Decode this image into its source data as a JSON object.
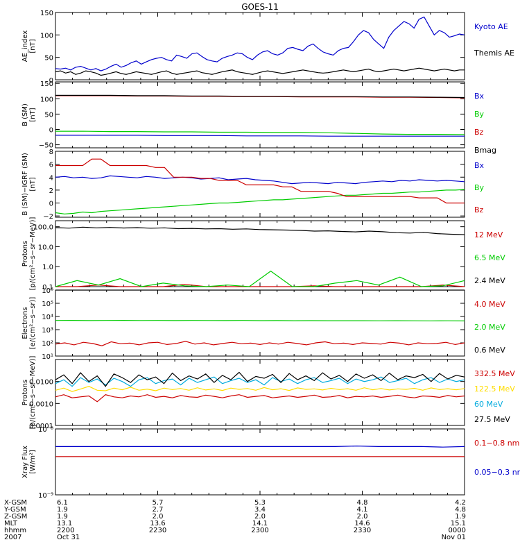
{
  "title": "GOES-11",
  "chart_data": [
    {
      "type": "line",
      "ylabel": "AE_index\n[nT]",
      "ylim": [
        0,
        150
      ],
      "yticks": [
        "0",
        "50",
        "100",
        "150"
      ],
      "yticks_values": [
        0,
        50,
        100,
        150
      ],
      "series": [
        {
          "name": "Kyoto AE",
          "color": "#0000cc",
          "values": [
            25,
            24,
            26,
            22,
            28,
            30,
            26,
            22,
            25,
            20,
            24,
            30,
            35,
            28,
            32,
            38,
            42,
            35,
            40,
            45,
            48,
            50,
            45,
            42,
            55,
            52,
            48,
            58,
            60,
            52,
            45,
            42,
            40,
            48,
            52,
            55,
            60,
            58,
            50,
            45,
            55,
            62,
            65,
            58,
            55,
            60,
            70,
            72,
            68,
            65,
            75,
            80,
            70,
            62,
            58,
            55,
            65,
            70,
            72,
            85,
            100,
            110,
            105,
            90,
            80,
            70,
            95,
            110,
            120,
            130,
            125,
            115,
            135,
            140,
            120,
            100,
            110,
            105,
            95,
            98,
            102,
            100
          ],
          "y_scale": "linear"
        },
        {
          "name": "Themis AE",
          "color": "#000000",
          "values": [
            18,
            20,
            15,
            18,
            12,
            15,
            20,
            18,
            15,
            10,
            12,
            15,
            18,
            14,
            12,
            15,
            18,
            16,
            14,
            12,
            15,
            18,
            20,
            15,
            12,
            14,
            16,
            18,
            20,
            16,
            14,
            12,
            15,
            18,
            20,
            22,
            18,
            16,
            14,
            12,
            15,
            18,
            20,
            18,
            16,
            14,
            16,
            18,
            20,
            22,
            20,
            18,
            16,
            15,
            16,
            18,
            20,
            22,
            20,
            18,
            20,
            22,
            24,
            20,
            18,
            20,
            22,
            24,
            22,
            20,
            22,
            24,
            26,
            24,
            22,
            20,
            22,
            24,
            22,
            20,
            22,
            22
          ],
          "y_scale": "linear"
        }
      ]
    },
    {
      "type": "line",
      "ylabel": "B (SM)\n[nT]",
      "ylim": [
        -60,
        155
      ],
      "yticks": [
        "−50",
        "0",
        "50",
        "100",
        "150"
      ],
      "yticks_values": [
        -50,
        0,
        50,
        100,
        150
      ],
      "series": [
        {
          "name": "Bx",
          "color": "#0000cc",
          "values": [
            -19,
            -19,
            -19,
            -19,
            -20,
            -20,
            -20,
            -21,
            -21,
            -21,
            -22,
            -22,
            -22,
            -22,
            -22,
            -22
          ]
        },
        {
          "name": "By",
          "color": "#00cc00",
          "values": [
            -6,
            -6,
            -7,
            -7,
            -8,
            -8,
            -9,
            -9,
            -10,
            -10,
            -11,
            -13,
            -15,
            -16,
            -16,
            -17
          ]
        },
        {
          "name": "Bz",
          "color": "#cc0000",
          "values": [
            110,
            110,
            110,
            109,
            109,
            108,
            108,
            107,
            107,
            106,
            106,
            106,
            105,
            105,
            104,
            103
          ]
        },
        {
          "name": "Bmag",
          "color": "#000000",
          "values": [
            111,
            111,
            111,
            110,
            110,
            109,
            109,
            108,
            108,
            107,
            107,
            107,
            106,
            106,
            105,
            104
          ]
        }
      ]
    },
    {
      "type": "line",
      "ylabel": "B (SM)−IGRF (SM)\n[nT]",
      "ylim": [
        -2.2,
        8
      ],
      "yticks": [
        "−2",
        "0",
        "2",
        "4",
        "6",
        "8"
      ],
      "yticks_values": [
        -2,
        0,
        2,
        4,
        6,
        8
      ],
      "series": [
        {
          "name": "Bx",
          "color": "#0000cc",
          "values": [
            4,
            4.1,
            3.9,
            4,
            3.8,
            3.9,
            4.2,
            4.1,
            4,
            3.9,
            4.1,
            4,
            3.8,
            3.9,
            4,
            3.9,
            3.7,
            3.8,
            3.9,
            3.6,
            3.7,
            3.8,
            3.6,
            3.5,
            3.4,
            3.2,
            3,
            3.1,
            3.2,
            3.1,
            3,
            3.2,
            3.1,
            3,
            3.2,
            3.3,
            3.4,
            3.3,
            3.5,
            3.4,
            3.6,
            3.5,
            3.4,
            3.5,
            3.4,
            3.3
          ]
        },
        {
          "name": "By",
          "color": "#00cc00",
          "values": [
            -1.5,
            -1.7,
            -1.6,
            -1.4,
            -1.5,
            -1.3,
            -1.2,
            -1.1,
            -1,
            -0.9,
            -0.8,
            -0.7,
            -0.6,
            -0.5,
            -0.4,
            -0.3,
            -0.2,
            -0.1,
            0,
            0,
            0.1,
            0.2,
            0.3,
            0.4,
            0.5,
            0.5,
            0.6,
            0.7,
            0.8,
            0.9,
            1,
            1.1,
            1.2,
            1.2,
            1.3,
            1.4,
            1.5,
            1.5,
            1.6,
            1.7,
            1.7,
            1.8,
            1.9,
            2,
            2,
            2.1
          ]
        },
        {
          "name": "Bz",
          "color": "#cc0000",
          "values": [
            5.8,
            5.8,
            5.8,
            5.8,
            6.8,
            6.8,
            5.8,
            5.8,
            5.8,
            5.8,
            5.8,
            5.5,
            5.5,
            4,
            4,
            4,
            3.8,
            3.8,
            3.5,
            3.5,
            3.5,
            2.8,
            2.8,
            2.8,
            2.8,
            2.5,
            2.5,
            1.8,
            1.8,
            1.8,
            1.8,
            1.5,
            1,
            1,
            1,
            1,
            1,
            1,
            1,
            1,
            0.8,
            0.8,
            0.8,
            0,
            0,
            0
          ]
        }
      ]
    },
    {
      "type": "line",
      "ylabel": "Protons\n[p/(cm²−s−sr−MeV)]",
      "y_scale": "log",
      "ylim": [
        0.1,
        200
      ],
      "yticks": [
        "0.1",
        "1.0",
        "10.0",
        "100.0"
      ],
      "yticks_values": [
        0.1,
        1,
        10,
        100
      ],
      "series": [
        {
          "name": "12 MeV",
          "color": "#cc0000",
          "values": [
            0.1,
            0.1,
            0.12,
            0.1,
            0.1,
            0.1,
            0.13,
            0.1,
            0.1,
            0.1,
            0.1,
            0.1,
            0.11,
            0.1,
            0.1,
            0.1,
            0.1,
            0.1,
            0.12,
            0.1
          ]
        },
        {
          "name": "6.5 MeV",
          "color": "#00cc00",
          "values": [
            0.1,
            0.2,
            0.12,
            0.25,
            0.1,
            0.15,
            0.11,
            0.1,
            0.12,
            0.1,
            0.6,
            0.1,
            0.1,
            0.15,
            0.2,
            0.12,
            0.3,
            0.1,
            0.11,
            0.2
          ]
        },
        {
          "name": "2.4 MeV",
          "color": "#000000",
          "values": [
            90,
            85,
            95,
            88,
            92,
            86,
            90,
            84,
            88,
            80,
            82,
            78,
            80,
            75,
            78,
            72,
            70,
            68,
            65,
            60,
            62,
            58,
            55,
            60,
            56,
            50,
            48,
            52,
            45,
            42,
            40
          ]
        }
      ]
    },
    {
      "type": "line",
      "ylabel": "Electrons\n[e/(cm²−s−sr)]",
      "y_scale": "log",
      "ylim": [
        10,
        1000000
      ],
      "yticks": [
        "10¹",
        "10²",
        "10³",
        "10⁴",
        "10⁵",
        "10⁶"
      ],
      "yticks_values": [
        10,
        100,
        1000,
        10000,
        100000,
        1000000
      ],
      "series": [
        {
          "name": "4.0 MeV",
          "color": "#cc0000",
          "values": [
            80,
            100,
            70,
            110,
            90,
            60,
            120,
            85,
            95,
            70,
            100,
            110,
            75,
            90,
            130,
            80,
            100,
            70,
            90,
            110,
            85,
            95,
            75,
            100,
            80,
            110,
            90,
            70,
            100,
            120,
            85,
            95,
            75,
            100,
            90,
            80,
            110,
            95,
            70,
            100,
            85,
            90,
            110,
            75,
            100
          ]
        },
        {
          "name": "2.0 MeV",
          "color": "#00cc00",
          "values": [
            5000,
            5100,
            4900,
            5000,
            5050,
            4950,
            5000,
            4900,
            5000,
            4950,
            4900,
            5000,
            4850,
            4900,
            4800,
            4850,
            4800,
            4750,
            4800,
            4700,
            4800,
            4700,
            4650,
            4700,
            4600
          ]
        },
        {
          "name": "0.6 MeV",
          "color": "#000000",
          "values": [
            1000000,
            1000000
          ]
        }
      ]
    },
    {
      "type": "line",
      "ylabel": "Protons\n[p/(cm²−s−sr−MeV)]",
      "y_scale": "log",
      "ylim": [
        0.0001,
        0.1
      ],
      "yticks": [
        "0.0001",
        "0.0010",
        "0.0100"
      ],
      "yticks_values": [
        0.0001,
        0.001,
        0.01
      ],
      "series": [
        {
          "name": "332.5 MeV",
          "color": "#cc0000",
          "values": [
            0.002,
            0.0025,
            0.0018,
            0.002,
            0.0022,
            0.0012,
            0.0025,
            0.002,
            0.0018,
            0.0022,
            0.002,
            0.0025,
            0.0019,
            0.0021,
            0.0018,
            0.0023,
            0.002,
            0.0019,
            0.0024,
            0.0021,
            0.0018,
            0.0022,
            0.0025,
            0.0019,
            0.0021,
            0.0023,
            0.0018,
            0.002,
            0.0022,
            0.0019,
            0.0021,
            0.0024,
            0.0019,
            0.002,
            0.0023,
            0.0018,
            0.0021,
            0.002,
            0.0022,
            0.0019,
            0.0021,
            0.0024,
            0.002,
            0.0018,
            0.0022,
            0.0021,
            0.0019,
            0.0023,
            0.002,
            0.0022
          ]
        },
        {
          "name": "122.5 MeV",
          "color": "#ffdd00",
          "values": [
            0.004,
            0.005,
            0.0035,
            0.0045,
            0.006,
            0.004,
            0.0038,
            0.005,
            0.0042,
            0.0055,
            0.004,
            0.0045,
            0.0038,
            0.005,
            0.0043,
            0.0048,
            0.004,
            0.0052,
            0.0041,
            0.0046,
            0.0039,
            0.005,
            0.0044,
            0.0048,
            0.004,
            0.0053,
            0.0042,
            0.0047,
            0.0039,
            0.0051,
            0.0044,
            0.0046,
            0.0041,
            0.0049,
            0.0043,
            0.0047,
            0.004,
            0.0052,
            0.0042,
            0.0048,
            0.0041,
            0.0046,
            0.0044,
            0.0049,
            0.004,
            0.0051,
            0.0043,
            0.0047,
            0.0042,
            0.0048
          ]
        },
        {
          "name": "60 MeV",
          "color": "#00aadd",
          "values": [
            0.008,
            0.012,
            0.006,
            0.015,
            0.009,
            0.013,
            0.007,
            0.014,
            0.01,
            0.006,
            0.012,
            0.015,
            0.008,
            0.011,
            0.013,
            0.007,
            0.014,
            0.009,
            0.012,
            0.016,
            0.008,
            0.011,
            0.014,
            0.009,
            0.012,
            0.007,
            0.015,
            0.01,
            0.013,
            0.008,
            0.012,
            0.015,
            0.009,
            0.011,
            0.014,
            0.008,
            0.013,
            0.01,
            0.012,
            0.016,
            0.009,
            0.011,
            0.014,
            0.008,
            0.012,
            0.015,
            0.009,
            0.013,
            0.01,
            0.012
          ]
        },
        {
          "name": "27.5 MeV",
          "color": "#000000",
          "values": [
            0.012,
            0.02,
            0.008,
            0.025,
            0.01,
            0.018,
            0.006,
            0.022,
            0.015,
            0.009,
            0.02,
            0.012,
            0.016,
            0.008,
            0.024,
            0.011,
            0.018,
            0.013,
            0.022,
            0.009,
            0.019,
            0.012,
            0.026,
            0.01,
            0.017,
            0.014,
            0.021,
            0.009,
            0.023,
            0.012,
            0.018,
            0.011,
            0.025,
            0.013,
            0.019,
            0.01,
            0.022,
            0.014,
            0.02,
            0.011,
            0.024,
            0.012,
            0.018,
            0.015,
            0.021,
            0.01,
            0.023,
            0.013,
            0.019,
            0.016
          ]
        }
      ]
    },
    {
      "type": "line",
      "ylabel": "Xray Flux\n[W/m²]",
      "y_scale": "log",
      "ylim": [
        1e-09,
        1e-08
      ],
      "yticks": [
        "10⁻⁹",
        "10⁻⁸"
      ],
      "yticks_values": [
        1e-09,
        1e-08
      ],
      "series": [
        {
          "name": "0.1−0.8 nm",
          "color": "#cc0000",
          "values": [
            3.8e-09,
            3.8e-09,
            3.8e-09,
            3.8e-09,
            3.8e-09,
            3.8e-09,
            3.8e-09,
            3.8e-09,
            3.8e-09,
            3.8e-09,
            3.8e-09,
            3.8e-09,
            3.8e-09,
            3.8e-09,
            3.8e-09,
            3.8e-09,
            3.8e-09,
            3.8e-09,
            3.8e-09,
            3.8e-09
          ]
        },
        {
          "name": "0.05−0.3 nm",
          "color": "#0000cc",
          "values": [
            5.4e-09,
            5.4e-09,
            5.4e-09,
            5.4e-09,
            5.4e-09,
            5.4e-09,
            5.4e-09,
            5.4e-09,
            5.4e-09,
            5.4e-09,
            5.4e-09,
            5.4e-09,
            5.4e-09,
            5.4e-09,
            5.5e-09,
            5.4e-09,
            5.4e-09,
            5.4e-09,
            5.3e-09,
            5.4e-09
          ]
        }
      ]
    }
  ],
  "ephemeris": {
    "labels": [
      "X-GSM",
      "Y-GSM",
      "Z-GSM",
      "MLT",
      "hhmm",
      "2007"
    ],
    "columns": [
      [
        "6.1",
        "1.9",
        "1.9",
        "13.1",
        "2200",
        "Oct 31"
      ],
      [
        "5.7",
        "2.7",
        "2.0",
        "13.6",
        "2230",
        ""
      ],
      [
        "5.3",
        "3.4",
        "2.0",
        "14.1",
        "2300",
        ""
      ],
      [
        "4.8",
        "4.1",
        "2.0",
        "14.6",
        "2330",
        ""
      ],
      [
        "4.2",
        "4.8",
        "1.9",
        "15.1",
        "0000",
        "Nov 01"
      ]
    ]
  }
}
